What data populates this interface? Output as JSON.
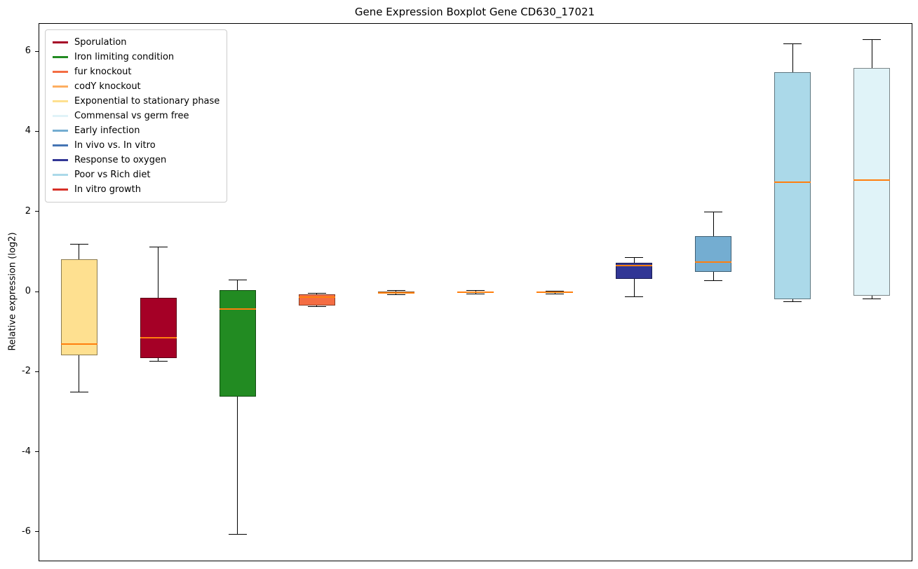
{
  "chart_data": {
    "type": "boxplot",
    "title": "Gene Expression Boxplot Gene CD630_17021",
    "ylabel": "Relative expression (log2)",
    "xlabel": "",
    "ylim": [
      -6.7,
      6.7
    ],
    "yticks": [
      -6,
      -4,
      -2,
      0,
      2,
      4,
      6
    ],
    "grid": false,
    "legend_position": "upper left",
    "median_color": "#ff7f0e",
    "legend": [
      {
        "label": "Sporulation",
        "color": "#a50026"
      },
      {
        "label": "Iron limiting condition",
        "color": "#228b22"
      },
      {
        "label": "fur knockout",
        "color": "#f46d43"
      },
      {
        "label": "codY knockout",
        "color": "#fdae61"
      },
      {
        "label": "Exponential to stationary phase",
        "color": "#fee090"
      },
      {
        "label": "Commensal vs germ free",
        "color": "#e0f3f8"
      },
      {
        "label": "Early infection",
        "color": "#74add1"
      },
      {
        "label": "In vivo vs. In vitro",
        "color": "#4575b4"
      },
      {
        "label": "Response to oxygen",
        "color": "#313695"
      },
      {
        "label": "Poor vs Rich diet",
        "color": "#abd9e9"
      },
      {
        "label": "In vitro growth",
        "color": "#d73027"
      }
    ],
    "boxes": [
      {
        "label": "Exponential to stationary phase",
        "color": "#fee090",
        "whisker_low": -2.5,
        "q1": -1.57,
        "median": -1.3,
        "q3": 0.82,
        "whisker_high": 1.2
      },
      {
        "label": "Sporulation",
        "color": "#a50026",
        "whisker_low": -1.72,
        "q1": -1.65,
        "median": -1.13,
        "q3": -0.14,
        "whisker_high": 1.12
      },
      {
        "label": "Iron limiting condition",
        "color": "#228b22",
        "whisker_low": -6.05,
        "q1": -2.6,
        "median": -0.42,
        "q3": 0.05,
        "whisker_high": 0.3
      },
      {
        "label": "fur knockout",
        "color": "#f46d43",
        "whisker_low": -0.36,
        "q1": -0.33,
        "median": -0.12,
        "q3": -0.06,
        "whisker_high": -0.03
      },
      {
        "label": "codY knockout",
        "color": "#fdae61",
        "whisker_low": -0.06,
        "q1": -0.03,
        "median": -0.01,
        "q3": 0.02,
        "whisker_high": 0.04
      },
      {
        "label": "In vitro growth",
        "color": "#d73027",
        "whisker_low": -0.05,
        "q1": -0.02,
        "median": 0,
        "q3": 0.02,
        "whisker_high": 0.04
      },
      {
        "label": "In vivo vs. In vitro",
        "color": "#4575b4",
        "whisker_low": -0.05,
        "q1": -0.02,
        "median": 0,
        "q3": 0.02,
        "whisker_high": 0.03
      },
      {
        "label": "Response to oxygen",
        "color": "#313695",
        "whisker_low": -0.12,
        "q1": 0.33,
        "median": 0.66,
        "q3": 0.73,
        "whisker_high": 0.87
      },
      {
        "label": "Early infection",
        "color": "#74add1",
        "whisker_low": 0.28,
        "q1": 0.5,
        "median": 0.76,
        "q3": 1.4,
        "whisker_high": 2.0
      },
      {
        "label": "Poor vs Rich diet",
        "color": "#abd9e9",
        "whisker_low": -0.24,
        "q1": -0.17,
        "median": 2.75,
        "q3": 5.5,
        "whisker_high": 6.2
      },
      {
        "label": "Commensal vs germ free",
        "color": "#e0f3f8",
        "whisker_low": -0.17,
        "q1": -0.09,
        "median": 2.8,
        "q3": 5.6,
        "whisker_high": 6.3
      }
    ]
  }
}
